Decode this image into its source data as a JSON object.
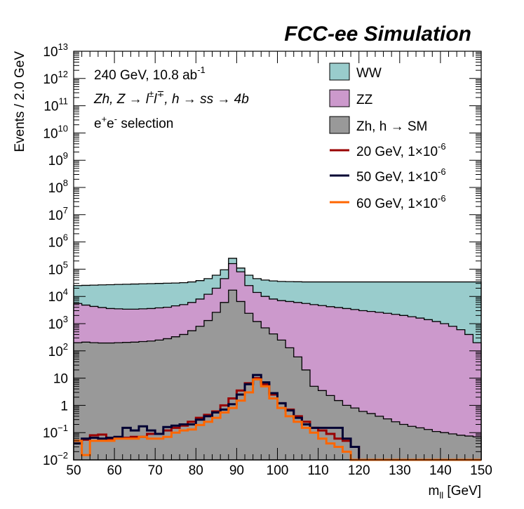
{
  "chart_data": {
    "type": "histogram",
    "header": "FCC-ee Simulation",
    "annotations": {
      "line1": "240 GeV, 10.8 ab",
      "line1_sup": "-1",
      "line2": "Zh, Z → l",
      "line2_sup1": "±",
      "line2_l2": "l",
      "line2_sup2": "∓",
      "line2_tail": ", h → ss → 4b",
      "line3_e1": "e",
      "line3_sup1": "+",
      "line3_e2": "e",
      "line3_sup2": "-",
      "line3_tail": " selection"
    },
    "xlabel": "m",
    "xlabel_sub": "ll",
    "xlabel_unit": " [GeV]",
    "ylabel": "Events / 2.0 GeV",
    "xlim": [
      50,
      150
    ],
    "ylim": [
      0.01,
      10000000000000.0
    ],
    "yscale": "log",
    "bin_edges_start": 50,
    "bin_width": 2,
    "x_ticks": [
      "50",
      "60",
      "70",
      "80",
      "90",
      "100",
      "110",
      "120",
      "130",
      "140",
      "150"
    ],
    "y_ticks": [
      {
        "v": 0.01,
        "base": "10",
        "exp": "−2"
      },
      {
        "v": 0.1,
        "base": "10",
        "exp": "−1"
      },
      {
        "v": 1,
        "base": "1",
        "exp": ""
      },
      {
        "v": 10,
        "base": "10",
        "exp": ""
      },
      {
        "v": 100,
        "base": "10",
        "exp": "2"
      },
      {
        "v": 1000,
        "base": "10",
        "exp": "3"
      },
      {
        "v": 10000,
        "base": "10",
        "exp": "4"
      },
      {
        "v": 100000,
        "base": "10",
        "exp": "5"
      },
      {
        "v": 1000000,
        "base": "10",
        "exp": "6"
      },
      {
        "v": 10000000,
        "base": "10",
        "exp": "7"
      },
      {
        "v": 100000000,
        "base": "10",
        "exp": "8"
      },
      {
        "v": 1000000000,
        "base": "10",
        "exp": "9"
      },
      {
        "v": 10000000000,
        "base": "10",
        "exp": "10"
      },
      {
        "v": 100000000000,
        "base": "10",
        "exp": "11"
      },
      {
        "v": 1000000000000,
        "base": "10",
        "exp": "12"
      },
      {
        "v": 10000000000000,
        "base": "10",
        "exp": "13"
      }
    ],
    "stacked": [
      {
        "name": "WW",
        "color": "#99cccc",
        "cumulative": [
          25000,
          25500,
          26000,
          26500,
          27000,
          27500,
          28000,
          28500,
          29000,
          29500,
          30000,
          30500,
          31000,
          32000,
          34000,
          38000,
          45000,
          60000,
          95000,
          250000,
          110000,
          60000,
          45000,
          40000,
          37000,
          35500,
          35000,
          34500,
          34000,
          34000,
          34000,
          34000,
          34000,
          34000,
          34000,
          34000,
          34000,
          34000,
          34000,
          34000,
          34000,
          34000,
          34000,
          34000,
          34000,
          34000,
          34000,
          34000,
          34000,
          34000
        ]
      },
      {
        "name": "ZZ",
        "color": "#cc99cc",
        "cumulative": [
          5500,
          4800,
          4300,
          3900,
          3600,
          3500,
          3400,
          3400,
          3500,
          3600,
          3800,
          4000,
          4500,
          5000,
          6000,
          8000,
          12000,
          20000,
          45000,
          160000,
          80000,
          25000,
          14000,
          10000,
          8000,
          7000,
          6500,
          6000,
          5500,
          5000,
          4600,
          4200,
          3900,
          3600,
          3300,
          3000,
          2800,
          2600,
          2400,
          2200,
          2000,
          1800,
          1600,
          1400,
          1200,
          1000,
          800,
          600,
          400,
          200
        ]
      },
      {
        "name": "Zh, h → SM",
        "color": "#999999",
        "cumulative": [
          200,
          210,
          200,
          195,
          195,
          200,
          205,
          210,
          220,
          230,
          250,
          280,
          330,
          400,
          550,
          800,
          1300,
          2600,
          6000,
          17000,
          6500,
          2400,
          1200,
          700,
          420,
          250,
          130,
          60,
          20,
          5,
          3.5,
          2.3,
          1.5,
          1.0,
          0.8,
          0.6,
          0.5,
          0.4,
          0.32,
          0.25,
          0.2,
          0.17,
          0.15,
          0.13,
          0.11,
          0.1,
          0.09,
          0.08,
          0.075,
          0.07
        ]
      }
    ],
    "series": [
      {
        "name": "20 GeV, 1×10",
        "name_sup": "-6",
        "color": "#990000",
        "values": [
          0.05,
          0.055,
          0.08,
          0.085,
          0.06,
          0.065,
          0.065,
          0.07,
          0.07,
          0.09,
          0.09,
          0.12,
          0.15,
          0.18,
          0.25,
          0.35,
          0.45,
          0.6,
          1.0,
          1.8,
          3.5,
          6.5,
          10.0,
          6.0,
          2.5,
          1.2,
          0.7,
          0.4,
          0.25,
          0.15,
          0.12,
          0.09,
          0.06,
          0.05,
          0.03,
          0.01,
          0.01,
          0.01,
          0.01,
          0.01,
          0.01,
          0.01,
          0.01,
          0.01,
          0.01,
          0.01,
          0.01,
          0.01,
          0.01,
          0.01
        ]
      },
      {
        "name": "50 GeV, 1×10",
        "name_sup": "-6",
        "color": "#000033",
        "values": [
          0.04,
          0.06,
          0.065,
          0.06,
          0.065,
          0.07,
          0.15,
          0.12,
          0.17,
          0.12,
          0.09,
          0.16,
          0.18,
          0.2,
          0.2,
          0.3,
          0.4,
          0.55,
          0.7,
          1.1,
          2.5,
          6.0,
          13.0,
          7.0,
          2.8,
          1.2,
          0.65,
          0.35,
          0.2,
          0.15,
          0.15,
          0.15,
          0.15,
          0.06,
          0.03,
          0.01,
          0.01,
          0.01,
          0.01,
          0.01,
          0.01,
          0.01,
          0.01,
          0.01,
          0.01,
          0.01,
          0.01,
          0.01,
          0.01,
          0.01
        ]
      },
      {
        "name": "60 GeV, 1×10",
        "name_sup": "-6",
        "color": "#ff6600",
        "values": [
          0.05,
          0.015,
          0.05,
          0.05,
          0.05,
          0.06,
          0.06,
          0.06,
          0.07,
          0.06,
          0.06,
          0.07,
          0.1,
          0.12,
          0.13,
          0.19,
          0.25,
          0.35,
          0.55,
          0.8,
          1.5,
          3.0,
          9.0,
          5.0,
          1.8,
          0.8,
          0.4,
          0.25,
          0.15,
          0.1,
          0.06,
          0.04,
          0.03,
          0.02,
          0.01,
          0.01,
          0.01,
          0.01,
          0.01,
          0.01,
          0.01,
          0.01,
          0.01,
          0.01,
          0.01,
          0.01,
          0.01,
          0.01,
          0.01,
          0.01
        ]
      }
    ]
  }
}
